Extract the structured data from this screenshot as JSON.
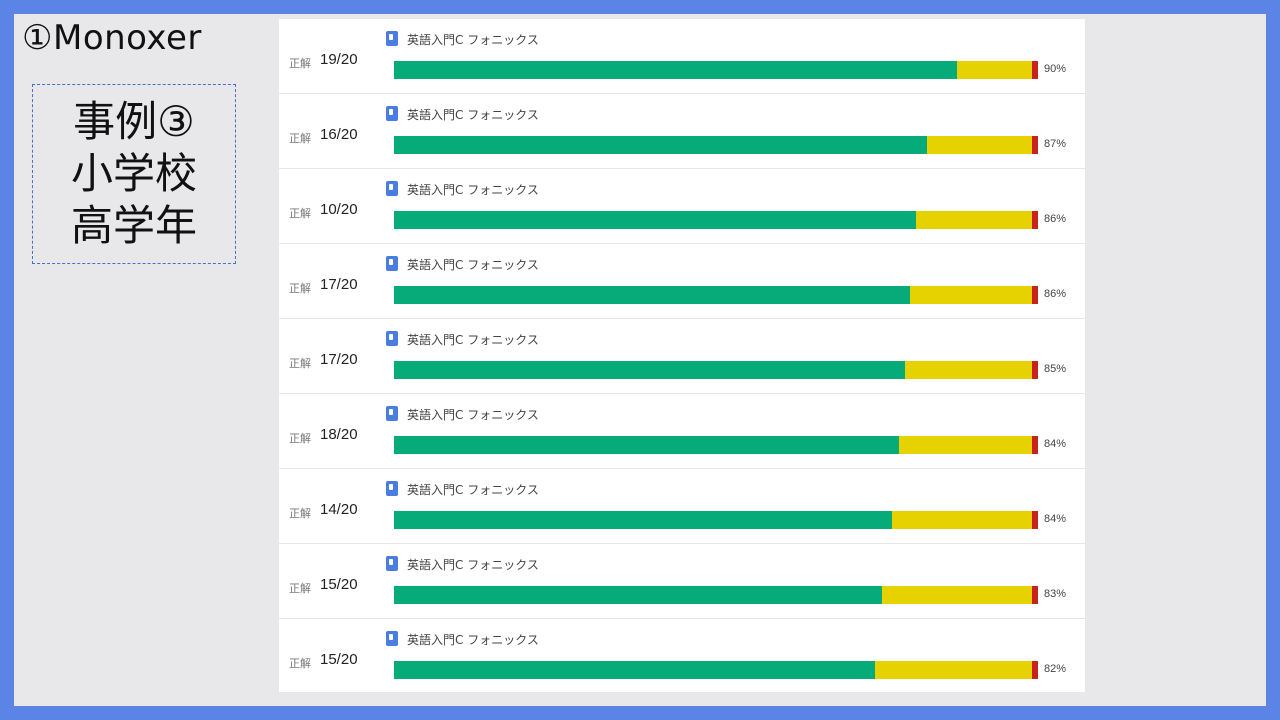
{
  "slide": {
    "title": "①Monoxer",
    "case_box": {
      "lines": [
        "事例③",
        "小学校",
        "高学年"
      ]
    }
  },
  "panel": {
    "correct_label": "正解",
    "rows": [
      {
        "score": "19/20",
        "course": "英語入門C フォニックス",
        "percent": "90%",
        "green_fraction": 0.874
      },
      {
        "score": "16/20",
        "course": "英語入門C フォニックス",
        "percent": "87%",
        "green_fraction": 0.828
      },
      {
        "score": "10/20",
        "course": "英語入門C フォニックス",
        "percent": "86%",
        "green_fraction": 0.811
      },
      {
        "score": "17/20",
        "course": "英語入門C フォニックス",
        "percent": "86%",
        "green_fraction": 0.802
      },
      {
        "score": "17/20",
        "course": "英語入門C フォニックス",
        "percent": "85%",
        "green_fraction": 0.793
      },
      {
        "score": "18/20",
        "course": "英語入門C フォニックス",
        "percent": "84%",
        "green_fraction": 0.784
      },
      {
        "score": "14/20",
        "course": "英語入門C フォニックス",
        "percent": "84%",
        "green_fraction": 0.774
      },
      {
        "score": "15/20",
        "course": "英語入門C フォニックス",
        "percent": "83%",
        "green_fraction": 0.757
      },
      {
        "score": "15/20",
        "course": "英語入門C フォニックス",
        "percent": "82%",
        "green_fraction": 0.747
      }
    ]
  },
  "colors": {
    "green": "#06ab79",
    "yellow": "#e6d200",
    "red": "#c8221d",
    "icon_blue": "#4a7de0"
  }
}
